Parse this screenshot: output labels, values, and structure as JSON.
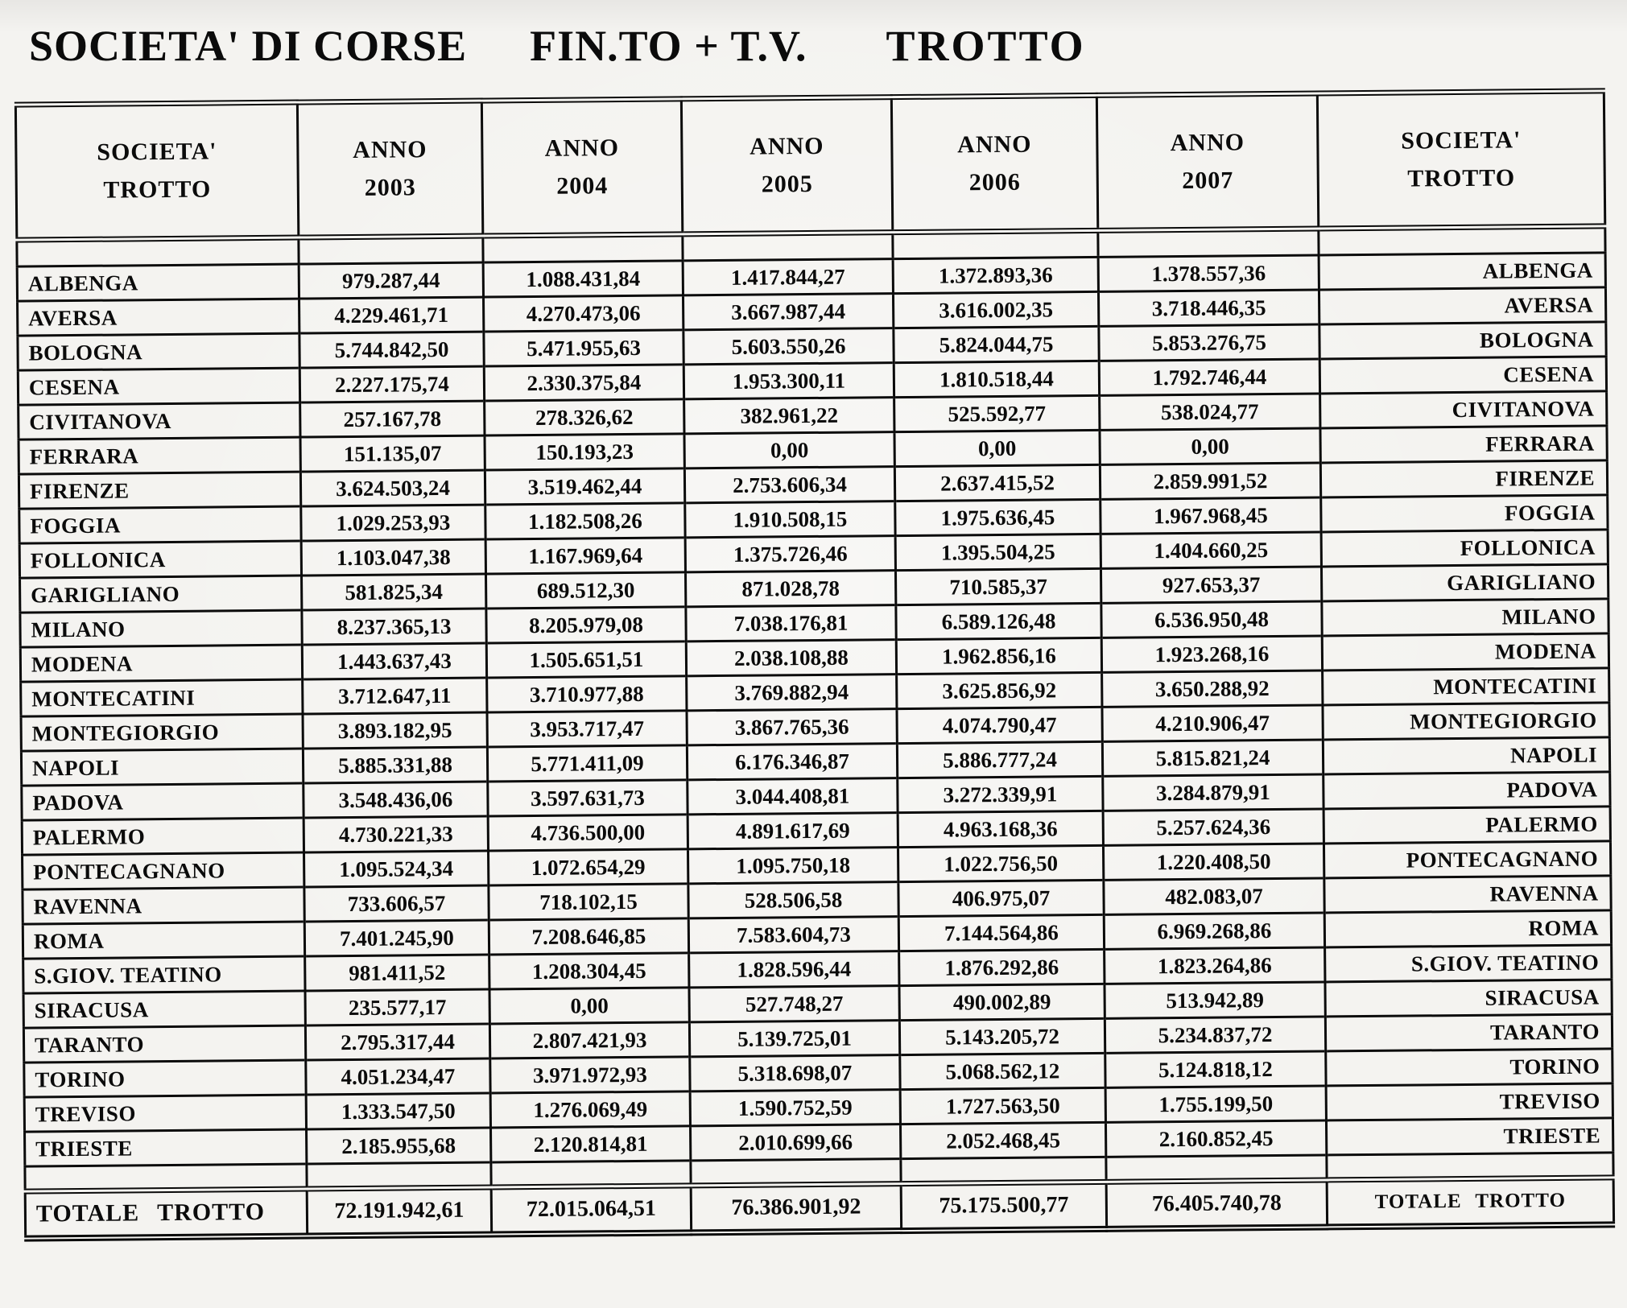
{
  "title": {
    "part1": "SOCIETA' DI CORSE",
    "part2": "FIN.TO + T.V.",
    "part3": "TROTTO"
  },
  "table": {
    "header": {
      "left_line1": "SOCIETA'",
      "left_line2": "TROTTO",
      "years": [
        {
          "line1": "ANNO",
          "line2": "2003"
        },
        {
          "line1": "ANNO",
          "line2": "2004"
        },
        {
          "line1": "ANNO",
          "line2": "2005"
        },
        {
          "line1": "ANNO",
          "line2": "2006"
        },
        {
          "line1": "ANNO",
          "line2": "2007"
        }
      ],
      "right_line1": "SOCIETA'",
      "right_line2": "TROTTO"
    },
    "rows": [
      {
        "name": "ALBENGA",
        "values": [
          "979.287,44",
          "1.088.431,84",
          "1.417.844,27",
          "1.372.893,36",
          "1.378.557,36"
        ]
      },
      {
        "name": "AVERSA",
        "values": [
          "4.229.461,71",
          "4.270.473,06",
          "3.667.987,44",
          "3.616.002,35",
          "3.718.446,35"
        ]
      },
      {
        "name": "BOLOGNA",
        "values": [
          "5.744.842,50",
          "5.471.955,63",
          "5.603.550,26",
          "5.824.044,75",
          "5.853.276,75"
        ]
      },
      {
        "name": "CESENA",
        "values": [
          "2.227.175,74",
          "2.330.375,84",
          "1.953.300,11",
          "1.810.518,44",
          "1.792.746,44"
        ]
      },
      {
        "name": "CIVITANOVA",
        "values": [
          "257.167,78",
          "278.326,62",
          "382.961,22",
          "525.592,77",
          "538.024,77"
        ]
      },
      {
        "name": "FERRARA",
        "values": [
          "151.135,07",
          "150.193,23",
          "0,00",
          "0,00",
          "0,00"
        ]
      },
      {
        "name": "FIRENZE",
        "values": [
          "3.624.503,24",
          "3.519.462,44",
          "2.753.606,34",
          "2.637.415,52",
          "2.859.991,52"
        ]
      },
      {
        "name": "FOGGIA",
        "values": [
          "1.029.253,93",
          "1.182.508,26",
          "1.910.508,15",
          "1.975.636,45",
          "1.967.968,45"
        ]
      },
      {
        "name": "FOLLONICA",
        "values": [
          "1.103.047,38",
          "1.167.969,64",
          "1.375.726,46",
          "1.395.504,25",
          "1.404.660,25"
        ]
      },
      {
        "name": "GARIGLIANO",
        "values": [
          "581.825,34",
          "689.512,30",
          "871.028,78",
          "710.585,37",
          "927.653,37"
        ]
      },
      {
        "name": "MILANO",
        "values": [
          "8.237.365,13",
          "8.205.979,08",
          "7.038.176,81",
          "6.589.126,48",
          "6.536.950,48"
        ]
      },
      {
        "name": "MODENA",
        "values": [
          "1.443.637,43",
          "1.505.651,51",
          "2.038.108,88",
          "1.962.856,16",
          "1.923.268,16"
        ]
      },
      {
        "name": "MONTECATINI",
        "values": [
          "3.712.647,11",
          "3.710.977,88",
          "3.769.882,94",
          "3.625.856,92",
          "3.650.288,92"
        ]
      },
      {
        "name": "MONTEGIORGIO",
        "values": [
          "3.893.182,95",
          "3.953.717,47",
          "3.867.765,36",
          "4.074.790,47",
          "4.210.906,47"
        ]
      },
      {
        "name": "NAPOLI",
        "values": [
          "5.885.331,88",
          "5.771.411,09",
          "6.176.346,87",
          "5.886.777,24",
          "5.815.821,24"
        ]
      },
      {
        "name": "PADOVA",
        "values": [
          "3.548.436,06",
          "3.597.631,73",
          "3.044.408,81",
          "3.272.339,91",
          "3.284.879,91"
        ]
      },
      {
        "name": "PALERMO",
        "values": [
          "4.730.221,33",
          "4.736.500,00",
          "4.891.617,69",
          "4.963.168,36",
          "5.257.624,36"
        ]
      },
      {
        "name": "PONTECAGNANO",
        "values": [
          "1.095.524,34",
          "1.072.654,29",
          "1.095.750,18",
          "1.022.756,50",
          "1.220.408,50"
        ]
      },
      {
        "name": "RAVENNA",
        "values": [
          "733.606,57",
          "718.102,15",
          "528.506,58",
          "406.975,07",
          "482.083,07"
        ]
      },
      {
        "name": "ROMA",
        "values": [
          "7.401.245,90",
          "7.208.646,85",
          "7.583.604,73",
          "7.144.564,86",
          "6.969.268,86"
        ]
      },
      {
        "name": "S.GIOV. TEATINO",
        "values": [
          "981.411,52",
          "1.208.304,45",
          "1.828.596,44",
          "1.876.292,86",
          "1.823.264,86"
        ]
      },
      {
        "name": "SIRACUSA",
        "values": [
          "235.577,17",
          "0,00",
          "527.748,27",
          "490.002,89",
          "513.942,89"
        ]
      },
      {
        "name": "TARANTO",
        "values": [
          "2.795.317,44",
          "2.807.421,93",
          "5.139.725,01",
          "5.143.205,72",
          "5.234.837,72"
        ]
      },
      {
        "name": "TORINO",
        "values": [
          "4.051.234,47",
          "3.971.972,93",
          "5.318.698,07",
          "5.068.562,12",
          "5.124.818,12"
        ]
      },
      {
        "name": "TREVISO",
        "values": [
          "1.333.547,50",
          "1.276.069,49",
          "1.590.752,59",
          "1.727.563,50",
          "1.755.199,50"
        ]
      },
      {
        "name": "TRIESTE",
        "values": [
          "2.185.955,68",
          "2.120.814,81",
          "2.010.699,66",
          "2.052.468,45",
          "2.160.852,45"
        ]
      }
    ],
    "total": {
      "label": "TOTALE TROTTO",
      "values": [
        "72.191.942,61",
        "72.015.064,51",
        "76.386.901,92",
        "75.175.500,77",
        "76.405.740,78"
      ],
      "right_label": "TOTALE TROTTO"
    }
  }
}
